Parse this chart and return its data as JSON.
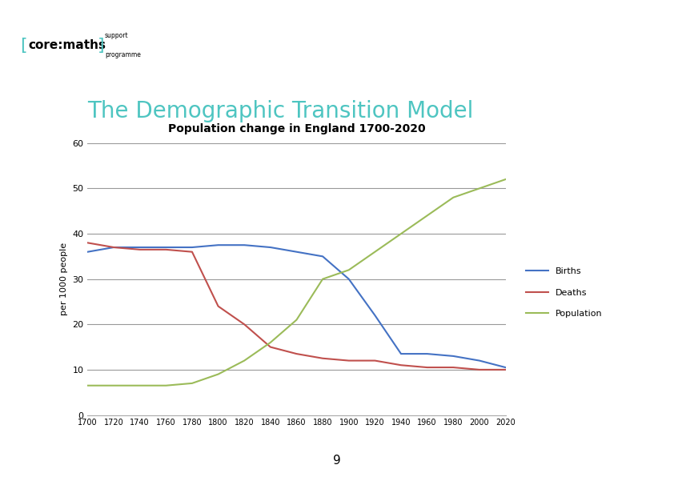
{
  "title": "The Demographic Transition Model",
  "subtitle": "Population change in England 1700-2020",
  "ylabel": "per 1000 people",
  "ylim": [
    0,
    60
  ],
  "yticks": [
    0,
    10,
    20,
    30,
    40,
    50,
    60
  ],
  "xlim": [
    1700,
    2020
  ],
  "xticks": [
    1700,
    1720,
    1740,
    1760,
    1780,
    1800,
    1820,
    1840,
    1860,
    1880,
    1900,
    1920,
    1940,
    1960,
    1980,
    2000,
    2020
  ],
  "births_x": [
    1700,
    1720,
    1740,
    1760,
    1780,
    1800,
    1820,
    1840,
    1860,
    1880,
    1900,
    1920,
    1940,
    1960,
    1980,
    2000,
    2020
  ],
  "births_y": [
    36,
    37,
    37,
    37,
    37,
    37.5,
    37.5,
    37,
    36,
    35,
    30,
    22,
    13.5,
    13.5,
    13,
    12,
    10.5
  ],
  "deaths_x": [
    1700,
    1720,
    1740,
    1760,
    1780,
    1800,
    1820,
    1840,
    1860,
    1880,
    1900,
    1920,
    1940,
    1960,
    1980,
    2000,
    2020
  ],
  "deaths_y": [
    38,
    37,
    36.5,
    36.5,
    36,
    24,
    20,
    15,
    13.5,
    12.5,
    12,
    12,
    11,
    10.5,
    10.5,
    10,
    10
  ],
  "population_x": [
    1700,
    1720,
    1740,
    1760,
    1780,
    1800,
    1820,
    1840,
    1860,
    1880,
    1900,
    1920,
    1940,
    1960,
    1980,
    2000,
    2020
  ],
  "population_y": [
    6.5,
    6.5,
    6.5,
    6.5,
    7,
    9,
    12,
    16,
    21,
    30,
    32,
    36,
    40,
    44,
    48,
    50,
    52
  ],
  "births_color": "#4472C4",
  "deaths_color": "#C0504D",
  "population_color": "#9BBB59",
  "title_color": "#4EC5C1",
  "subtitle_color": "#000000",
  "background_color": "#FFFFFF",
  "grid_color": "#999999",
  "legend_labels": [
    "Births",
    "Deaths",
    "Population"
  ],
  "page_number": "9",
  "teal_bar_color": "#4EC5C1",
  "logo_bracket_color": "#4EC5C1",
  "logo_text_color": "#000000"
}
